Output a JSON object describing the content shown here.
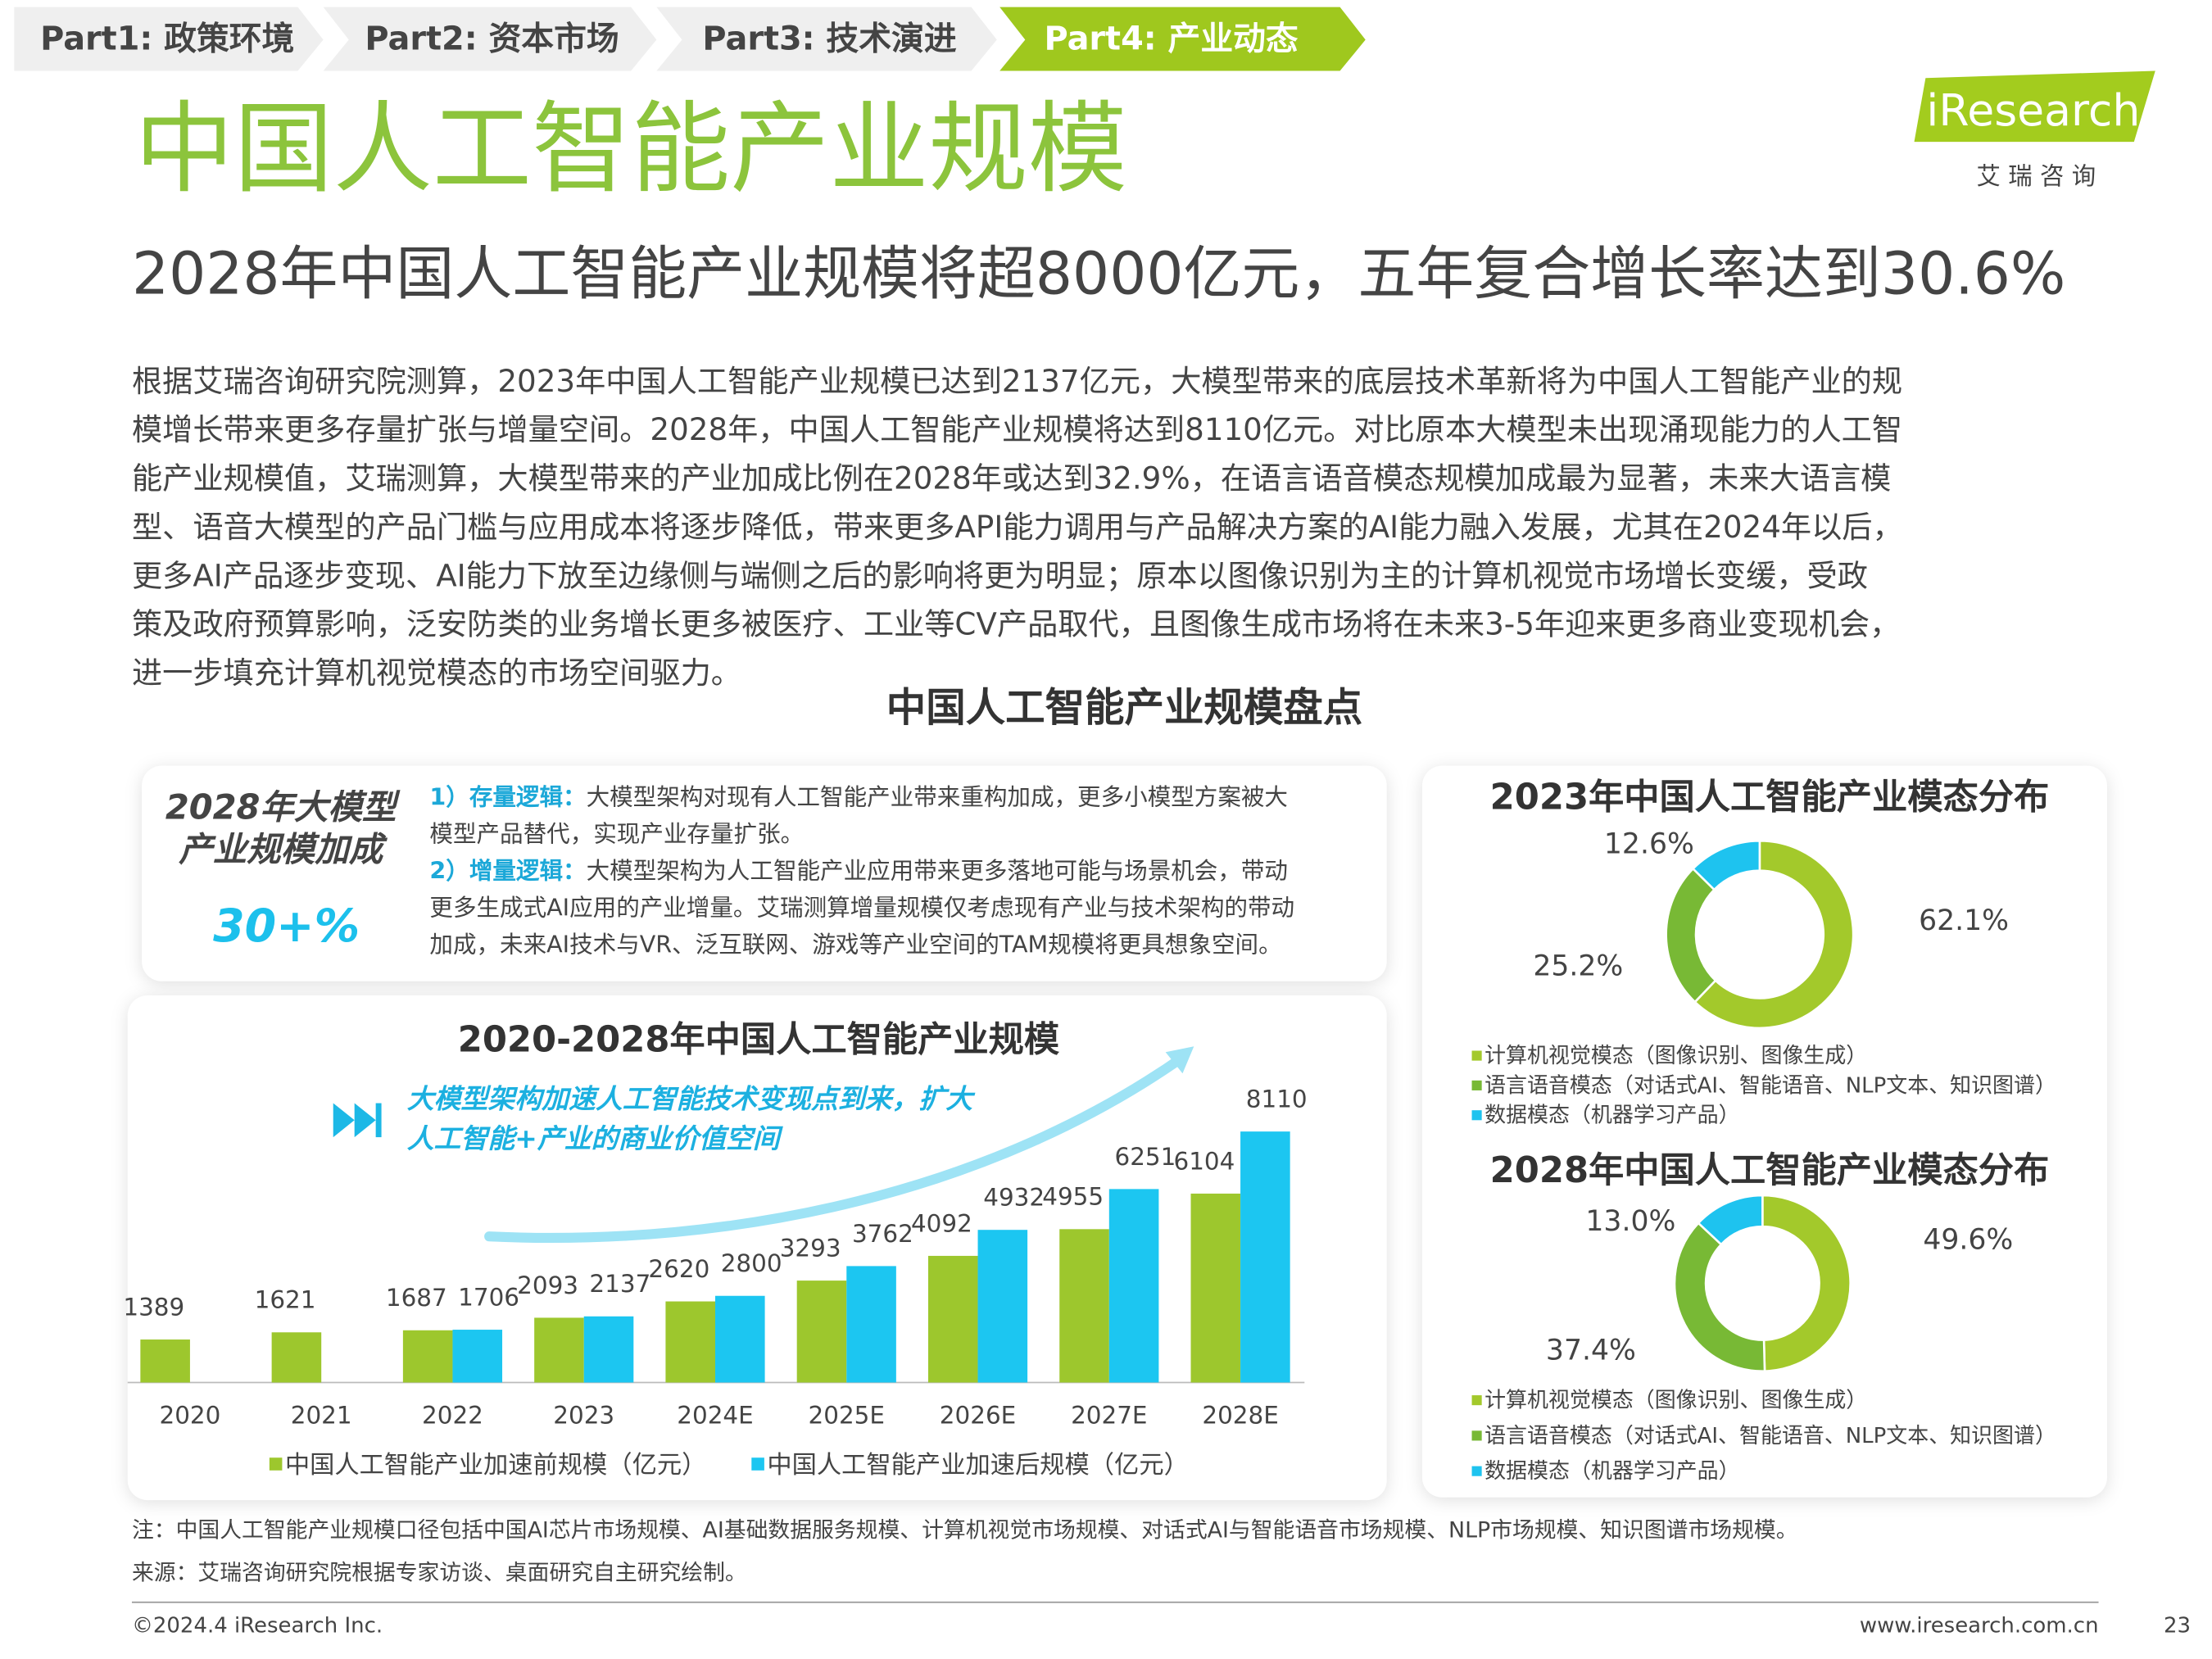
{
  "nav": [
    "Part1: 政策环境",
    "Part2: 资本市场",
    "Part3: 技术演进",
    "Part4: 产业动态"
  ],
  "header": {
    "title": "中国人工智能产业规模",
    "subtitle": "2028年中国人工智能产业规模将超8000亿元，五年复合增长率达到30.6%",
    "logo": "iResearch",
    "logo_sub": "艾 瑞 咨 询"
  },
  "body": [
    "根据艾瑞咨询研究院测算，2023年中国人工智能产业规模已达到2137亿元，大模型带来的底层技术革新将为中国人工智能产业的规",
    "模增长带来更多存量扩张与增量空间。2028年，中国人工智能产业规模将达到8110亿元。对比原本大模型未出现涌现能力的人工智",
    "能产业规模值，艾瑞测算，大模型带来的产业加成比例在2028年或达到32.9%，在语言语音模态规模加成最为显著，未来大语言模",
    "型、语音大模型的产品门槛与应用成本将逐步降低，带来更多API能力调用与产品解决方案的AI能力融入发展，尤其在2024年以后，",
    "更多AI产品逐步变现、AI能力下放至边缘侧与端侧之后的影响将更为明显；原本以图像识别为主的计算机视觉市场增长变缓，受政",
    "策及政府预算影响，泛安防类的业务增长更多被医疗、工业等CV产品取代，且图像生成市场将在未来3-5年迎来更多商业变现机会，",
    "进一步填充计算机视觉模态的市场空间驱力。"
  ],
  "section_title": "中国人工智能产业规模盘点",
  "highlight": {
    "heading": [
      "2028年大模型",
      "产业规模加成"
    ],
    "value": "30+%",
    "items": [
      {
        "label": "1）存量逻辑：",
        "lines": [
          "大模型架构对现有人工智能产业带来重构加成，更多小模型方案被大",
          "模型产品替代，实现产业存量扩张。"
        ]
      },
      {
        "label": "2）增量逻辑：",
        "lines": [
          "大模型架构为人工智能产业应用带来更多落地可能与场景机会，带动",
          "更多生成式AI应用的产业增量。艾瑞测算增量规模仅考虑现有产业与技术架构的带动",
          "加成，未来AI技术与VR、泛互联网、游戏等产业空间的TAM规模将更具想象空间。"
        ]
      }
    ]
  },
  "chart_data": [
    {
      "type": "bar",
      "title": "2020-2028年中国人工智能产业规模",
      "annotation": [
        "大模型架构加速人工智能技术变现点到来，扩大",
        "人工智能+产业的商业价值空间"
      ],
      "categories": [
        "2020",
        "2021",
        "2022",
        "2023",
        "2024E",
        "2025E",
        "2026E",
        "2027E",
        "2028E"
      ],
      "series": [
        {
          "name": "中国人工智能产业加速前规模（亿元）",
          "color": "#9dc72d",
          "values": [
            1389,
            1621,
            1687,
            2093,
            2620,
            3293,
            4092,
            4955,
            6104
          ]
        },
        {
          "name": "中国人工智能产业加速后规模（亿元）",
          "color": "#1cc6f1",
          "values": [
            null,
            null,
            1706,
            2137,
            2800,
            3762,
            4932,
            6251,
            8110
          ]
        }
      ]
    },
    {
      "type": "pie",
      "title": "2023年中国人工智能产业模态分布",
      "categories": [
        "计算机视觉模态（图像识别、图像生成）",
        "语言语音模态（对话式AI、智能语音、NLP文本、知识图谱）",
        "数据模态（机器学习产品）"
      ],
      "colors": [
        "#a3c92b",
        "#78b935",
        "#1ec3ef"
      ],
      "values": [
        62.1,
        25.2,
        12.6
      ],
      "value_labels": [
        "62.1%",
        "25.2%",
        "12.6%"
      ]
    },
    {
      "type": "pie",
      "title": "2028年中国人工智能产业模态分布",
      "categories": [
        "计算机视觉模态（图像识别、图像生成）",
        "语言语音模态（对话式AI、智能语音、NLP文本、知识图谱）",
        "数据模态（机器学习产品）"
      ],
      "colors": [
        "#a3c92b",
        "#78b935",
        "#1ec3ef"
      ],
      "values": [
        49.6,
        37.4,
        13
      ],
      "value_labels": [
        "49.6%",
        "37.4%",
        "13.0%"
      ]
    }
  ],
  "footer": {
    "note": "注：中国人工智能产业规模口径包括中国AI芯片市场规模、AI基础数据服务规模、计算机视觉市场规模、对话式AI与智能语音市场规模、NLP市场规模、知识图谱市场规模。",
    "source": "来源：艾瑞咨询研究院根据专家访谈、桌面研究自主研究绘制。",
    "copyright": "©2024.4 iResearch Inc.",
    "url": "www.iresearch.com.cn",
    "page": "23"
  }
}
